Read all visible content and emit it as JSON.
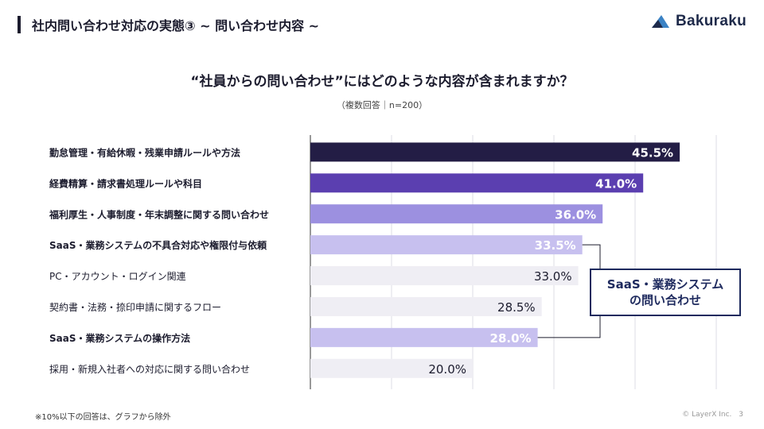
{
  "header": {
    "title": "社内問い合わせ対応の実態③ ~ 問い合わせ内容 ~",
    "logo_text": "Bakuraku"
  },
  "question": "“社員からの問い合わせ”にはどのような内容が含まれますか？",
  "sample_note": "（複数回答｜n=200）",
  "callout": {
    "line1": "SaaS・業務システム",
    "line2": "の問い合わせ"
  },
  "footnote": "※10%以下の回答は、グラフから除外",
  "copyright": "© LayerX Inc.",
  "page_number": "3",
  "chart_data": {
    "type": "bar",
    "orientation": "horizontal",
    "categories": [
      "勤怠管理・有給休暇・残業申請ルールや方法",
      "経費精算・請求書処理ルールや科目",
      "福利厚生・人事制度・年末調整に関する問い合わせ",
      "SaaS・業務システムの不具合対応や権限付与依頼",
      "PC・アカウント・ログイン関連",
      "契約書・法務・捺印申請に関するフロー",
      "SaaS・業務システムの操作方法",
      "採用・新規入社者への対応に関する問い合わせ"
    ],
    "values": [
      45.5,
      41.0,
      36.0,
      33.5,
      33.0,
      28.5,
      28.0,
      20.0
    ],
    "value_labels": [
      "45.5%",
      "41.0%",
      "36.0%",
      "33.5%",
      "33.0%",
      "28.5%",
      "28.0%",
      "20.0%"
    ],
    "bold_categories": [
      true,
      true,
      true,
      true,
      false,
      false,
      true,
      false
    ],
    "bar_colors": [
      "#231d45",
      "#5b3fb0",
      "#9c90e0",
      "#c7c0ef",
      "#efeef4",
      "#efeef4",
      "#c7c0ef",
      "#efeef4"
    ],
    "label_colors": [
      "#ffffff",
      "#ffffff",
      "#ffffff",
      "#ffffff",
      "#1c1c2e",
      "#1c1c2e",
      "#ffffff",
      "#1c1c2e"
    ],
    "xlim": [
      0,
      50
    ],
    "grid": true,
    "callout_highlight_rows": [
      3,
      6
    ]
  }
}
